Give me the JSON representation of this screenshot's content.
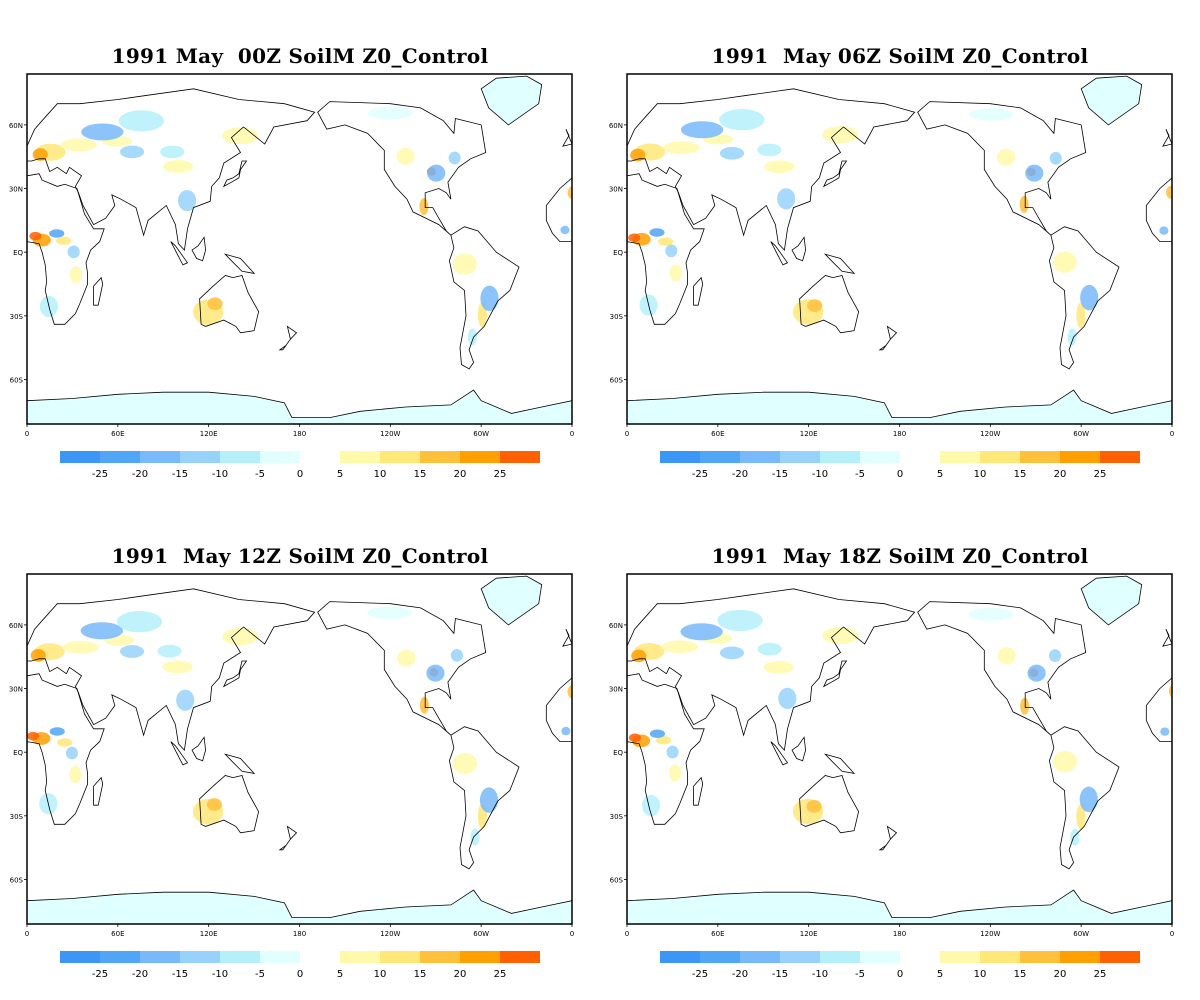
{
  "colors": {
    "ocean": "#ffffff",
    "land_neutral": "#ffffff",
    "ice": "#e0ffff",
    "frame": "#000000",
    "coast": "#000000"
  },
  "chart_data": [
    {
      "type": "heatmap",
      "title": "1991 May  00Z SoilM Z0_Control",
      "x_ticks": [
        "0",
        "60E",
        "120E",
        "180",
        "120W",
        "60W",
        "0"
      ],
      "y_ticks": [
        "60N",
        "30N",
        "EQ",
        "30S",
        "60S"
      ],
      "colorbar": {
        "negative_ticks": [
          "-25",
          "-20",
          "-15",
          "-10",
          "-5",
          "0"
        ],
        "negative_colors": [
          "#3c96f5",
          "#50a5f5",
          "#78b9fa",
          "#96d2fa",
          "#b4f0fa",
          "#e1ffff"
        ],
        "positive_ticks": [
          "5",
          "10",
          "15",
          "20",
          "25"
        ],
        "positive_colors": [
          "#fffaaa",
          "#ffe878",
          "#ffc03c",
          "#ffa000",
          "#ff6000"
        ]
      }
    },
    {
      "type": "heatmap",
      "title": "1991  May 06Z SoilM Z0_Control",
      "x_ticks": [
        "0",
        "60E",
        "120E",
        "180",
        "120W",
        "60W",
        "0"
      ],
      "y_ticks": [
        "60N",
        "30N",
        "EQ",
        "30S",
        "60S"
      ],
      "colorbar": {
        "negative_ticks": [
          "-25",
          "-20",
          "-15",
          "-10",
          "-5",
          "0"
        ],
        "negative_colors": [
          "#3c96f5",
          "#50a5f5",
          "#78b9fa",
          "#96d2fa",
          "#b4f0fa",
          "#e1ffff"
        ],
        "positive_ticks": [
          "5",
          "10",
          "15",
          "20",
          "25"
        ],
        "positive_colors": [
          "#fffaaa",
          "#ffe878",
          "#ffc03c",
          "#ffa000",
          "#ff6000"
        ]
      }
    },
    {
      "type": "heatmap",
      "title": "1991  May 12Z SoilM Z0_Control",
      "x_ticks": [
        "0",
        "60E",
        "120E",
        "180",
        "120W",
        "60W",
        "0"
      ],
      "y_ticks": [
        "60N",
        "30N",
        "EQ",
        "30S",
        "60S"
      ],
      "colorbar": {
        "negative_ticks": [
          "-25",
          "-20",
          "-15",
          "-10",
          "-5",
          "0"
        ],
        "negative_colors": [
          "#3c96f5",
          "#50a5f5",
          "#78b9fa",
          "#96d2fa",
          "#b4f0fa",
          "#e1ffff"
        ],
        "positive_ticks": [
          "5",
          "10",
          "15",
          "20",
          "25"
        ],
        "positive_colors": [
          "#fffaaa",
          "#ffe878",
          "#ffc03c",
          "#ffa000",
          "#ff6000"
        ]
      }
    },
    {
      "type": "heatmap",
      "title": "1991  May 18Z SoilM Z0_Control",
      "x_ticks": [
        "0",
        "60E",
        "120E",
        "180",
        "120W",
        "60W",
        "0"
      ],
      "y_ticks": [
        "60N",
        "30N",
        "EQ",
        "30S",
        "60S"
      ],
      "colorbar": {
        "negative_ticks": [
          "-25",
          "-20",
          "-15",
          "-10",
          "-5",
          "0"
        ],
        "negative_colors": [
          "#3c96f5",
          "#50a5f5",
          "#78b9fa",
          "#96d2fa",
          "#b4f0fa",
          "#e1ffff"
        ],
        "positive_ticks": [
          "5",
          "10",
          "15",
          "20",
          "25"
        ],
        "positive_colors": [
          "#fffaaa",
          "#ffe878",
          "#ffc03c",
          "#ffa000",
          "#ff6000"
        ]
      }
    }
  ]
}
